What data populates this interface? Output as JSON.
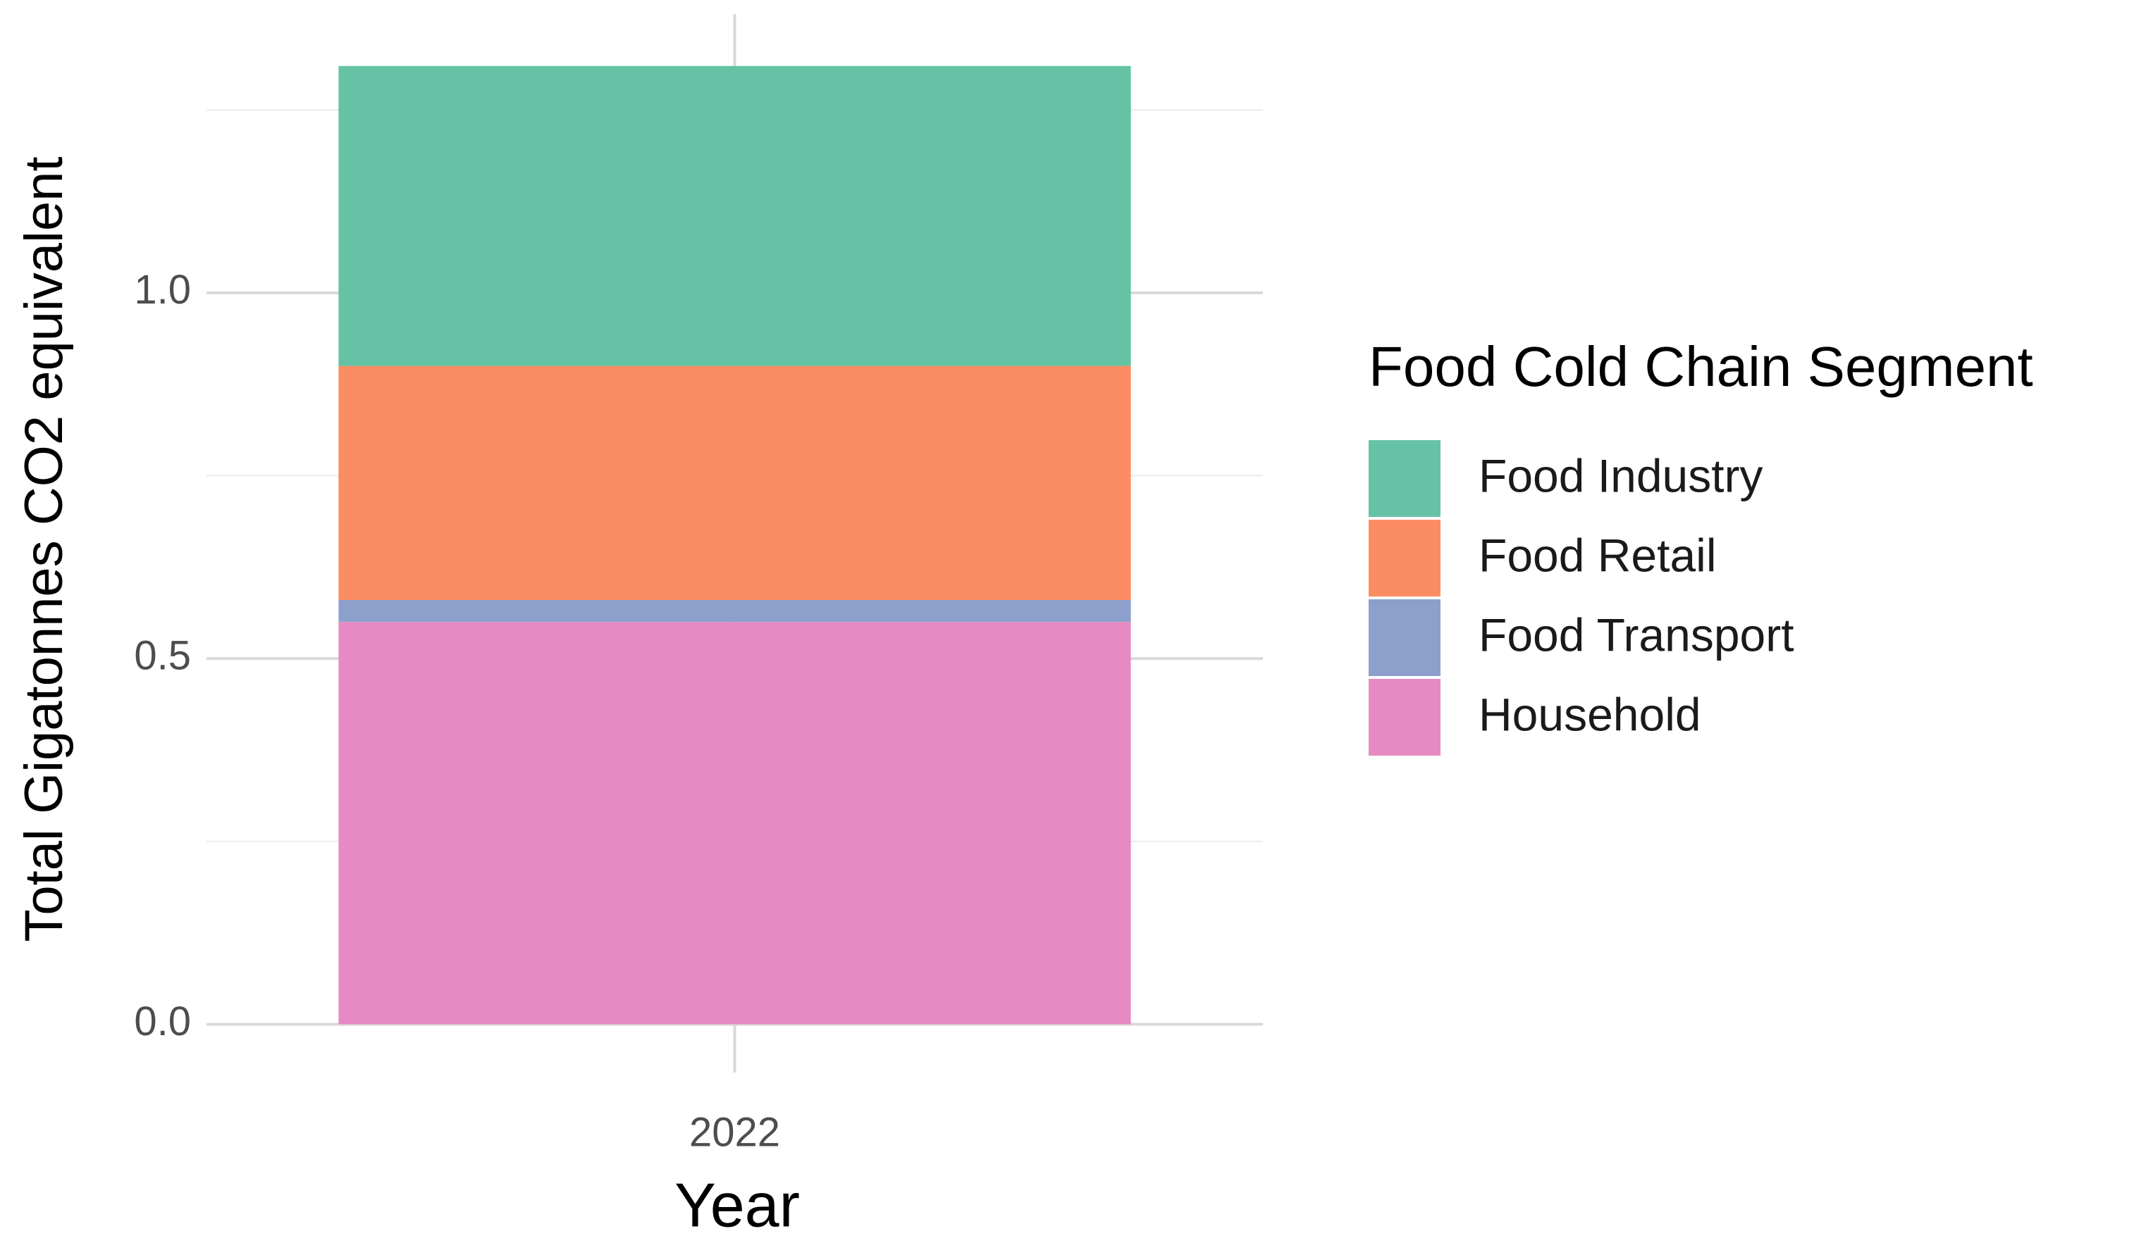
{
  "chart_data": {
    "type": "stacked_bar",
    "y_label": "Total Gigatonnes CO2 equivalent",
    "x_label": "Year",
    "categories": [
      "2022"
    ],
    "legend_title": "Food Cold Chain Segment",
    "series": [
      {
        "name": "Food Industry",
        "color": "#66c2a5",
        "values": [
          0.41
        ]
      },
      {
        "name": "Food Retail",
        "color": "#fc8d62",
        "values": [
          0.32
        ]
      },
      {
        "name": "Food Transport",
        "color": "#8da0cb",
        "values": [
          0.03
        ]
      },
      {
        "name": "Household",
        "color": "#e78ac3",
        "values": [
          0.55
        ]
      }
    ],
    "ylim": [
      -0.066,
      1.381
    ],
    "yticks": [
      {
        "value": 0,
        "label": "0.0"
      },
      {
        "value": 0.5,
        "label": "0.5"
      },
      {
        "value": 1,
        "label": "1.0"
      }
    ],
    "minor_yticks": [
      0.25,
      0.75,
      1.25
    ],
    "grid": true,
    "legend_position": "right"
  }
}
